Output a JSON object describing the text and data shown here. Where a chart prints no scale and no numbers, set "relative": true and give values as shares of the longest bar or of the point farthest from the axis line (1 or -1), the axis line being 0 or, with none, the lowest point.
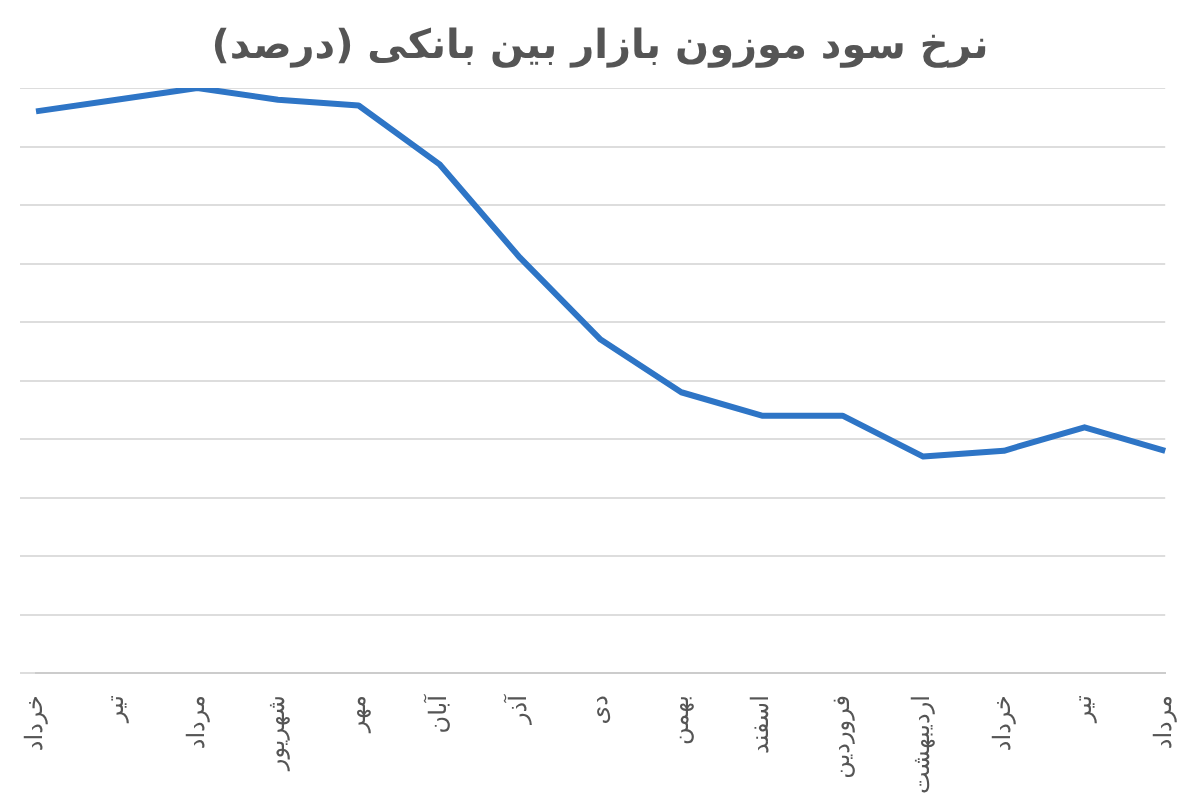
{
  "chart_data": {
    "type": "line",
    "title": "نرخ سود موزون بازار بین بانکی (درصد)",
    "categories": [
      "خرداد",
      "تیر",
      "مرداد",
      "شهریور",
      "مهر",
      "آبان",
      "آذر",
      "دی",
      "بهمن",
      "اسفند",
      "فروردین",
      "اردیبهشت",
      "خرداد",
      "تیر",
      "مرداد"
    ],
    "series": [
      {
        "color": "#2e75c6",
        "values": [
          0.96,
          0.98,
          1,
          0.98,
          0.97,
          0.87,
          0.71,
          0.57,
          0.48,
          0.44,
          0.44,
          0.37,
          0.38,
          0.42,
          0.38
        ]
      }
    ],
    "relative": true,
    "grid": "y",
    "legend": false,
    "marker": "none",
    "line_style": "solid"
  }
}
